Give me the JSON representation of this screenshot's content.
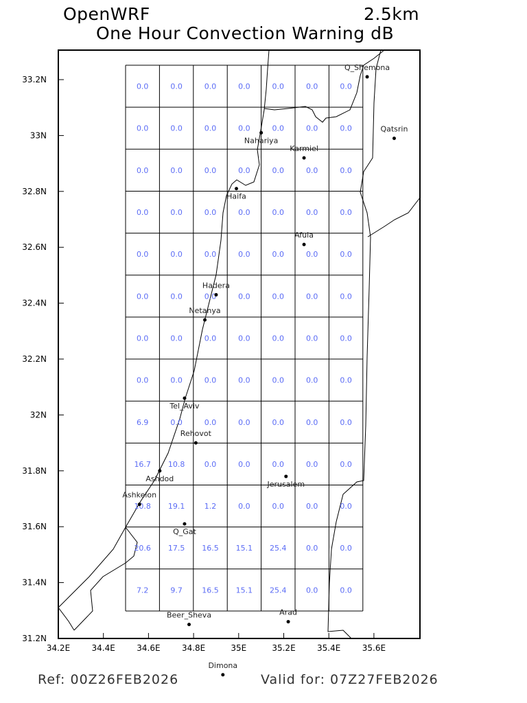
{
  "header": {
    "model": "OpenWRF",
    "resolution": "2.5km",
    "title": "One Hour Convection Warning dB"
  },
  "footer": {
    "ref": "Ref: 00Z26FEB2026",
    "valid": "Valid for: 07Z27FEB2026"
  },
  "axes": {
    "x_ticks": [
      "34.2E",
      "34.4E",
      "34.6E",
      "34.8E",
      "35E",
      "35.2E",
      "35.4E",
      "35.6E"
    ],
    "y_ticks": [
      "31.2N",
      "31.4N",
      "31.6N",
      "31.8N",
      "32N",
      "32.2N",
      "32.4N",
      "32.6N",
      "32.8N",
      "33N",
      "33.2N"
    ]
  },
  "value_color": "#5b6cf5",
  "grid_values": [
    [
      "0.0",
      "0.0",
      "0.0",
      "0.0",
      "0.0",
      "0.0",
      "0.0"
    ],
    [
      "0.0",
      "0.0",
      "0.0",
      "0.0",
      "0.0",
      "0.0",
      "0.0"
    ],
    [
      "0.0",
      "0.0",
      "0.0",
      "0.0",
      "0.0",
      "0.0",
      "0.0"
    ],
    [
      "0.0",
      "0.0",
      "0.0",
      "0.0",
      "0.0",
      "0.0",
      "0.0"
    ],
    [
      "0.0",
      "0.0",
      "0.0",
      "0.0",
      "0.0",
      "0.0",
      "0.0"
    ],
    [
      "0.0",
      "0.0",
      "0.0",
      "0.0",
      "0.0",
      "0.0",
      "0.0"
    ],
    [
      "0.0",
      "0.0",
      "0.0",
      "0.0",
      "0.0",
      "0.0",
      "0.0"
    ],
    [
      "0.0",
      "0.0",
      "0.0",
      "0.0",
      "0.0",
      "0.0",
      "0.0"
    ],
    [
      "6.9",
      "0.0",
      "0.0",
      "0.0",
      "0.0",
      "0.0",
      "0.0"
    ],
    [
      "16.7",
      "10.8",
      "0.0",
      "0.0",
      "0.0",
      "0.0",
      "0.0"
    ],
    [
      "10.8",
      "19.1",
      "1.2",
      "0.0",
      "0.0",
      "0.0",
      "0.0"
    ],
    [
      "20.6",
      "17.5",
      "16.5",
      "15.1",
      "25.4",
      "0.0",
      "0.0"
    ],
    [
      "7.2",
      "9.7",
      "16.5",
      "15.1",
      "25.4",
      "0.0",
      "0.0"
    ]
  ],
  "cities": [
    {
      "name": "Q_Shemona",
      "lon": 35.57,
      "lat": 33.21
    },
    {
      "name": "Qatsrin",
      "lon": 35.69,
      "lat": 32.99
    },
    {
      "name": "Nahariya",
      "lon": 35.1,
      "lat": 33.01
    },
    {
      "name": "Karmiel",
      "lon": 35.29,
      "lat": 32.92
    },
    {
      "name": "Haifa",
      "lon": 34.99,
      "lat": 32.81
    },
    {
      "name": "Afula",
      "lon": 35.29,
      "lat": 32.61
    },
    {
      "name": "Hadera",
      "lon": 34.9,
      "lat": 32.43
    },
    {
      "name": "Netanya",
      "lon": 34.85,
      "lat": 32.34
    },
    {
      "name": "Tel_Aviv",
      "lon": 34.76,
      "lat": 32.06
    },
    {
      "name": "Rehovot",
      "lon": 34.81,
      "lat": 31.9
    },
    {
      "name": "Ashdod",
      "lon": 34.65,
      "lat": 31.8
    },
    {
      "name": "Jerusalem",
      "lon": 35.21,
      "lat": 31.78
    },
    {
      "name": "Ashkelon",
      "lon": 34.56,
      "lat": 31.68
    },
    {
      "name": "Q_Gat",
      "lon": 34.76,
      "lat": 31.61
    },
    {
      "name": "Beer_Sheva",
      "lon": 34.78,
      "lat": 31.25
    },
    {
      "name": "Arad",
      "lon": 35.22,
      "lat": 31.26
    },
    {
      "name": "Dimona",
      "lon": 34.93,
      "lat": 31.07
    }
  ]
}
